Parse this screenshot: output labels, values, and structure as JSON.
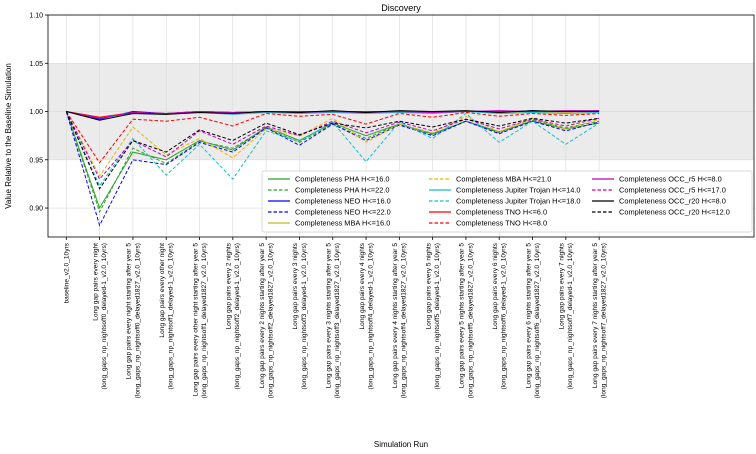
{
  "chart_data": {
    "type": "line",
    "title": "Discovery",
    "xlabel": "Simulation Run",
    "ylabel": "Value Relative to the Baseline Simulation",
    "ylim": [
      0.87,
      1.1
    ],
    "yticks": [
      "0.90",
      "0.95",
      "1.00",
      "1.05",
      "1.10"
    ],
    "shaded_band": [
      0.95,
      1.05
    ],
    "grid": true,
    "legend_position": "lower-right",
    "categories": [
      "baseline_v2.0_10yrs",
      "Long gap pairs every night\n(long_gaps_np_nightsoff0_delayed-1_v2.0_10yrs)",
      "Long gap pairs every night starting after year 5\n(long_gaps_np_nightsoff0_delayed1827_v2.0_10yrs)",
      "Long gap pairs every other night\n(long_gaps_np_nightsoff1_delayed-1_v2.0_10yrs)",
      "Long gap pairs every other night starting after year 5\n(long_gaps_np_nightsoff1_delayed1827_v2.0_10yrs)",
      "Long gap pairs every 2 nights\n(long_gaps_np_nightsoff2_delayed-1_v2.0_10yrs)",
      "Long gap pairs every 2 nights starting after year 5\n(long_gaps_np_nightsoff2_delayed1827_v2.0_10yrs)",
      "Long gap pairs every 3 nights\n(long_gaps_np_nightsoff3_delayed-1_v2.0_10yrs)",
      "Long gap pairs every 3 nights starting after year 5\n(long_gaps_np_nightsoff3_delayed1827_v2.0_10yrs)",
      "Long gap pairs every 4 nights\n(long_gaps_np_nightsoff4_delayed-1_v2.0_10yrs)",
      "Long gap pairs every 4 nights starting after year 5\n(long_gaps_np_nightsoff4_delayed1827_v2.0_10yrs)",
      "Long gap pairs every 5 nights\n(long_gaps_np_nightsoff5_delayed-1_v2.0_10yrs)",
      "Long gap pairs every 5 nights starting after year 5\n(long_gaps_np_nightsoff5_delayed1827_v2.0_10yrs)",
      "Long gap pairs every 6 nights\n(long_gaps_np_nightsoff6_delayed-1_v2.0_10yrs)",
      "Long gap pairs every 6 nights starting after year 5\n(long_gaps_np_nightsoff6_delayed1827_v2.0_10yrs)",
      "Long gap pairs every 7 nights\n(long_gaps_np_nightsoff7_delayed-1_v2.0_10yrs)",
      "Long gap pairs every 7 nights starting after year 5\n(long_gaps_np_nightsoff7_delayed1827_v2.0_10yrs)"
    ],
    "series": [
      {
        "name": "Completeness PHA H<=16.0",
        "color": "#2ca02c",
        "dash": "solid",
        "values": [
          1.0,
          0.9,
          0.958,
          0.95,
          0.97,
          0.96,
          0.984,
          0.97,
          0.988,
          0.975,
          0.987,
          0.977,
          0.99,
          0.979,
          0.99,
          0.982,
          0.988
        ]
      },
      {
        "name": "Completeness PHA H<=22.0",
        "color": "#2ca02c",
        "dash": "dashed",
        "values": [
          1.0,
          0.896,
          0.962,
          0.946,
          0.969,
          0.962,
          0.983,
          0.968,
          0.987,
          0.972,
          0.987,
          0.976,
          0.99,
          0.978,
          0.991,
          0.983,
          0.99
        ]
      },
      {
        "name": "Completeness NEO H<=16.0",
        "color": "#0000ff",
        "dash": "solid",
        "values": [
          1.0,
          0.992,
          1.0,
          0.998,
          1.0,
          0.999,
          1.0,
          0.999,
          1.0,
          0.999,
          1.0,
          0.999,
          1.0,
          0.999,
          1.001,
          0.999,
          1.001
        ]
      },
      {
        "name": "Completeness NEO H<=22.0",
        "color": "#0000ff",
        "dash": "dashed",
        "values": [
          1.0,
          0.882,
          0.95,
          0.945,
          0.968,
          0.958,
          0.983,
          0.965,
          0.987,
          0.97,
          0.986,
          0.975,
          0.99,
          0.977,
          0.99,
          0.98,
          0.989
        ]
      },
      {
        "name": "Completeness MBA H<=16.0",
        "color": "#bcbd22",
        "dash": "solid",
        "values": [
          1.0,
          0.994,
          0.999,
          0.998,
          1.0,
          0.999,
          1.0,
          0.999,
          1.0,
          0.999,
          1.0,
          0.999,
          1.0,
          0.999,
          1.0,
          0.999,
          1.0
        ]
      },
      {
        "name": "Completeness MBA H<=21.0",
        "color": "#e6b800",
        "dash": "dashed",
        "values": [
          1.0,
          0.933,
          0.984,
          0.955,
          0.972,
          0.952,
          0.982,
          0.975,
          0.993,
          0.968,
          0.987,
          0.978,
          0.995,
          0.979,
          0.993,
          0.982,
          0.992
        ]
      },
      {
        "name": "Completeness Jupiter Trojan H<=14.0",
        "color": "#17becf",
        "dash": "solid",
        "values": [
          1.0,
          0.993,
          0.998,
          0.997,
          0.999,
          0.997,
          0.999,
          0.998,
          0.999,
          0.998,
          0.999,
          0.998,
          1.0,
          0.998,
          0.999,
          0.998,
          0.999
        ]
      },
      {
        "name": "Completeness Jupiter Trojan H<=18.0",
        "color": "#17becf",
        "dash": "dashed",
        "values": [
          1.0,
          0.923,
          0.972,
          0.934,
          0.966,
          0.93,
          0.98,
          0.969,
          0.989,
          0.948,
          0.989,
          0.972,
          0.998,
          0.968,
          0.99,
          0.966,
          0.988
        ]
      },
      {
        "name": "Completeness TNO H<=6.0",
        "color": "#ff0000",
        "dash": "solid",
        "values": [
          1.0,
          0.994,
          0.999,
          0.998,
          1.0,
          0.999,
          1.0,
          1.0,
          1.0,
          1.0,
          1.0,
          1.0,
          1.0,
          1.0,
          1.0,
          1.0,
          1.0
        ]
      },
      {
        "name": "Completeness TNO H<=8.0",
        "color": "#ff0000",
        "dash": "dashed",
        "values": [
          1.0,
          0.947,
          0.992,
          0.99,
          0.994,
          0.985,
          0.998,
          0.995,
          0.997,
          0.987,
          0.998,
          0.994,
          0.999,
          0.995,
          0.998,
          0.996,
          0.998
        ]
      },
      {
        "name": "Completeness OCC_r5 H<=8.0",
        "color": "#bf00bf",
        "dash": "solid",
        "values": [
          1.0,
          0.993,
          0.999,
          0.998,
          1.0,
          0.999,
          1.0,
          0.999,
          1.0,
          0.999,
          1.0,
          0.999,
          1.0,
          1.001,
          1.0,
          1.001,
          1.001
        ]
      },
      {
        "name": "Completeness OCC_r5 H<=17.0",
        "color": "#bf00bf",
        "dash": "dashed",
        "values": [
          1.0,
          0.93,
          0.97,
          0.953,
          0.98,
          0.966,
          0.985,
          0.975,
          0.99,
          0.978,
          0.989,
          0.98,
          0.992,
          0.982,
          0.992,
          0.985,
          0.993
        ]
      },
      {
        "name": "Completeness OCC_r20 H<=8.0",
        "color": "#000000",
        "dash": "solid",
        "values": [
          1.0,
          0.991,
          0.998,
          0.997,
          0.999,
          0.998,
          1.0,
          0.999,
          1.001,
          0.999,
          1.001,
          1.0,
          1.001,
          0.999,
          1.001,
          1.0,
          1.0
        ]
      },
      {
        "name": "Completeness OCC_r20 H<=12.0",
        "color": "#000000",
        "dash": "dashed",
        "values": [
          1.0,
          0.92,
          0.97,
          0.958,
          0.981,
          0.97,
          0.988,
          0.976,
          0.988,
          0.983,
          0.99,
          0.984,
          0.992,
          0.985,
          0.993,
          0.988,
          0.993
        ]
      }
    ]
  }
}
